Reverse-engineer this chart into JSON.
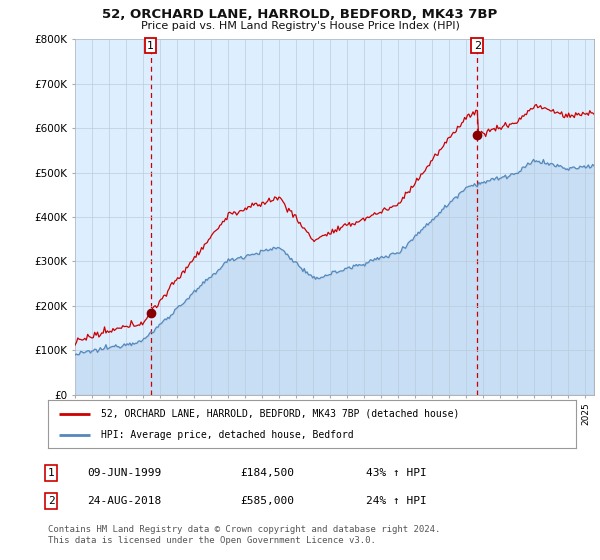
{
  "title": "52, ORCHARD LANE, HARROLD, BEDFORD, MK43 7BP",
  "subtitle": "Price paid vs. HM Land Registry's House Price Index (HPI)",
  "ylabel_ticks": [
    "£0",
    "£100K",
    "£200K",
    "£300K",
    "£400K",
    "£500K",
    "£600K",
    "£700K",
    "£800K"
  ],
  "ylim": [
    0,
    800000
  ],
  "xlim_start": 1995.0,
  "xlim_end": 2025.5,
  "sale1_date": 1999.44,
  "sale1_price": 184500,
  "sale2_date": 2018.64,
  "sale2_price": 585000,
  "sale1_label": "1",
  "sale2_label": "2",
  "legend_line1": "52, ORCHARD LANE, HARROLD, BEDFORD, MK43 7BP (detached house)",
  "legend_line2": "HPI: Average price, detached house, Bedford",
  "table_row1": [
    "1",
    "09-JUN-1999",
    "£184,500",
    "43% ↑ HPI"
  ],
  "table_row2": [
    "2",
    "24-AUG-2018",
    "£585,000",
    "24% ↑ HPI"
  ],
  "footer": "Contains HM Land Registry data © Crown copyright and database right 2024.\nThis data is licensed under the Open Government Licence v3.0.",
  "sale_line_color": "#cc0000",
  "hpi_line_color": "#5588bb",
  "chart_bg_color": "#ddeeff",
  "sale_marker_color": "#880000",
  "vline_color": "#cc0000",
  "background_color": "#ffffff",
  "grid_color": "#bbccdd"
}
